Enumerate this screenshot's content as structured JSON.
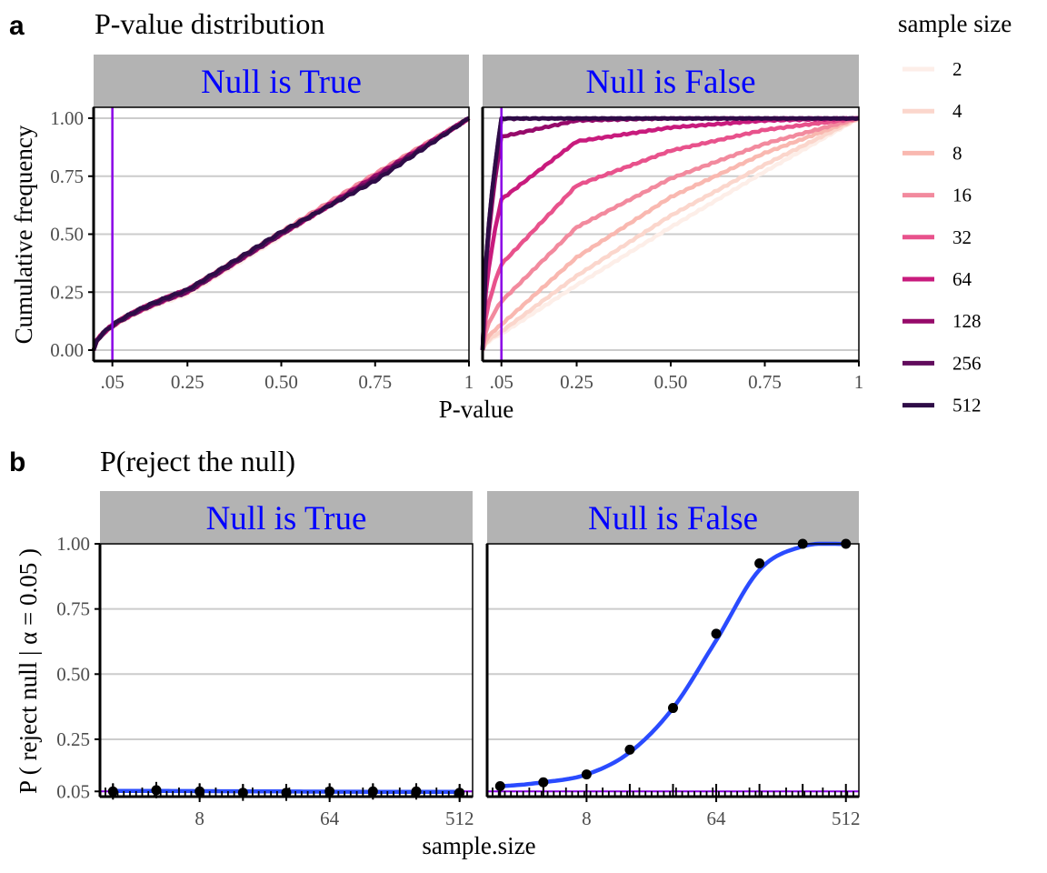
{
  "panel_a": {
    "letter": "a",
    "title": "P-value distribution",
    "x_label": "P-value",
    "y_label": "Cumulative frequency",
    "facets": [
      "Null is True",
      "Null is False"
    ],
    "y_ticks": [
      0,
      0.25,
      0.5,
      0.75,
      1
    ],
    "y_tick_labels": [
      "0.00",
      "0.25",
      "0.50",
      "0.75",
      "1.00"
    ],
    "x_ticks": [
      0.05,
      0.25,
      0.5,
      0.75,
      1
    ],
    "x_tick_labels": [
      ".05",
      "0.25",
      "0.50",
      "0.75",
      "1"
    ],
    "alpha_line": 0.05
  },
  "legend": {
    "title": "sample size",
    "items": [
      {
        "label": "2",
        "color": "#fdeee8"
      },
      {
        "label": "4",
        "color": "#fbd6cc"
      },
      {
        "label": "8",
        "color": "#f9b8b0"
      },
      {
        "label": "16",
        "color": "#f28a9e"
      },
      {
        "label": "32",
        "color": "#e8528c"
      },
      {
        "label": "64",
        "color": "#c81b7d"
      },
      {
        "label": "128",
        "color": "#960a6a"
      },
      {
        "label": "256",
        "color": "#610b5c"
      },
      {
        "label": "512",
        "color": "#2e0c47"
      }
    ]
  },
  "panel_b": {
    "letter": "b",
    "title": "P(reject the null)",
    "x_label": "sample.size",
    "y_label": "P ( reject null | α = 0.05 )",
    "facets": [
      "Null is True",
      "Null is False"
    ],
    "y_ticks": [
      0.05,
      0.25,
      0.5,
      0.75,
      1
    ],
    "y_tick_labels": [
      "0.05",
      "0.25",
      "0.50",
      "0.75",
      "1.00"
    ],
    "x_ticks": [
      8,
      64,
      512
    ],
    "x_tick_labels": [
      "8",
      "64",
      "512"
    ],
    "alpha_line": 0.05
  },
  "colors": {
    "strip_bg": "#b3b3b3",
    "strip_text": "#0000ff",
    "alpha_line": "#8a00e6",
    "fit_line": "#2a4bff",
    "grid": "#cccccc",
    "points": "#000000"
  },
  "chart_data": [
    {
      "type": "line",
      "title": "P-value distribution",
      "facet": "Null is True",
      "xlabel": "P-value",
      "ylabel": "Cumulative frequency",
      "xlim": [
        0,
        1
      ],
      "ylim": [
        0,
        1
      ],
      "series": [
        {
          "name": "2",
          "x": [
            0,
            0.25,
            0.5,
            0.75,
            1
          ],
          "values": [
            0,
            0.24,
            0.49,
            0.75,
            1
          ]
        },
        {
          "name": "4",
          "x": [
            0,
            0.25,
            0.5,
            0.75,
            1
          ],
          "values": [
            0,
            0.25,
            0.5,
            0.74,
            1
          ]
        },
        {
          "name": "8",
          "x": [
            0,
            0.25,
            0.5,
            0.75,
            1
          ],
          "values": [
            0,
            0.25,
            0.5,
            0.76,
            1
          ]
        },
        {
          "name": "16",
          "x": [
            0,
            0.25,
            0.5,
            0.75,
            1
          ],
          "values": [
            0,
            0.26,
            0.51,
            0.76,
            1
          ]
        },
        {
          "name": "32",
          "x": [
            0,
            0.25,
            0.5,
            0.75,
            1
          ],
          "values": [
            0,
            0.26,
            0.5,
            0.75,
            1
          ]
        },
        {
          "name": "64",
          "x": [
            0,
            0.25,
            0.5,
            0.75,
            1
          ],
          "values": [
            0,
            0.25,
            0.5,
            0.74,
            1
          ]
        },
        {
          "name": "128",
          "x": [
            0,
            0.25,
            0.5,
            0.75,
            1
          ],
          "values": [
            0,
            0.26,
            0.5,
            0.75,
            1
          ]
        },
        {
          "name": "256",
          "x": [
            0,
            0.25,
            0.5,
            0.75,
            1
          ],
          "values": [
            0,
            0.25,
            0.5,
            0.74,
            1
          ]
        },
        {
          "name": "512",
          "x": [
            0,
            0.25,
            0.5,
            0.75,
            1
          ],
          "values": [
            0,
            0.26,
            0.51,
            0.73,
            1
          ]
        }
      ]
    },
    {
      "type": "line",
      "title": "P-value distribution",
      "facet": "Null is False",
      "xlabel": "P-value",
      "ylabel": "Cumulative frequency",
      "xlim": [
        0,
        1
      ],
      "ylim": [
        0,
        1
      ],
      "series": [
        {
          "name": "2",
          "x": [
            0,
            0.05,
            0.25,
            0.5,
            0.75,
            1
          ],
          "values": [
            0,
            0.07,
            0.28,
            0.53,
            0.77,
            1
          ]
        },
        {
          "name": "4",
          "x": [
            0,
            0.05,
            0.25,
            0.5,
            0.75,
            1
          ],
          "values": [
            0,
            0.08,
            0.32,
            0.58,
            0.8,
            1
          ]
        },
        {
          "name": "8",
          "x": [
            0,
            0.05,
            0.25,
            0.5,
            0.75,
            1
          ],
          "values": [
            0,
            0.11,
            0.4,
            0.66,
            0.85,
            1
          ]
        },
        {
          "name": "16",
          "x": [
            0,
            0.05,
            0.25,
            0.5,
            0.75,
            1
          ],
          "values": [
            0,
            0.21,
            0.53,
            0.74,
            0.89,
            1
          ]
        },
        {
          "name": "32",
          "x": [
            0,
            0.05,
            0.25,
            0.5,
            0.75,
            1
          ],
          "values": [
            0,
            0.37,
            0.71,
            0.86,
            0.95,
            1
          ]
        },
        {
          "name": "64",
          "x": [
            0,
            0.05,
            0.25,
            0.5,
            0.75,
            1
          ],
          "values": [
            0,
            0.65,
            0.9,
            0.96,
            0.99,
            1
          ]
        },
        {
          "name": "128",
          "x": [
            0,
            0.05,
            0.25,
            0.5,
            0.75,
            1
          ],
          "values": [
            0,
            0.92,
            0.99,
            1,
            1,
            1
          ]
        },
        {
          "name": "256",
          "x": [
            0,
            0.05,
            0.25,
            0.5,
            0.75,
            1
          ],
          "values": [
            0,
            0.998,
            1,
            1,
            1,
            1
          ]
        },
        {
          "name": "512",
          "x": [
            0,
            0.05,
            0.25,
            0.5,
            0.75,
            1
          ],
          "values": [
            0,
            1,
            1,
            1,
            1,
            1
          ]
        }
      ]
    },
    {
      "type": "scatter",
      "title": "P(reject the null)",
      "facet": "Null is True",
      "xlabel": "sample.size",
      "ylabel": "P ( reject null | α = 0.05 )",
      "x_scale": "log2",
      "x": [
        2,
        4,
        8,
        16,
        32,
        64,
        128,
        256,
        512
      ],
      "values": [
        0.05,
        0.055,
        0.05,
        0.045,
        0.045,
        0.05,
        0.05,
        0.05,
        0.045
      ],
      "fit": {
        "x": [
          2,
          8,
          64,
          512
        ],
        "values": [
          0.052,
          0.051,
          0.049,
          0.048
        ]
      },
      "ylim": [
        0.05,
        1
      ]
    },
    {
      "type": "scatter",
      "title": "P(reject the null)",
      "facet": "Null is False",
      "xlabel": "sample.size",
      "ylabel": "P ( reject null | α = 0.05 )",
      "x_scale": "log2",
      "x": [
        2,
        4,
        8,
        16,
        32,
        64,
        128,
        256,
        512
      ],
      "values": [
        0.07,
        0.085,
        0.115,
        0.21,
        0.37,
        0.655,
        0.925,
        1.0,
        1.0
      ],
      "fit": {
        "x": [
          2,
          4,
          8,
          16,
          32,
          64,
          128,
          256,
          512
        ],
        "values": [
          0.07,
          0.085,
          0.115,
          0.2,
          0.37,
          0.63,
          0.9,
          0.99,
          1.0
        ]
      },
      "ylim": [
        0.05,
        1
      ]
    }
  ]
}
